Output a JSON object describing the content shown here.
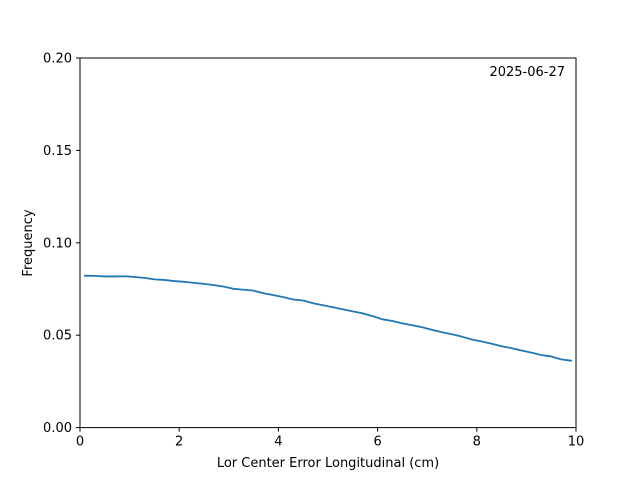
{
  "chart_data": {
    "type": "line",
    "title": "",
    "xlabel": "Lor Center Error Longitudinal (cm)",
    "ylabel": "Frequency",
    "annotation": "2025-06-27",
    "annotation_position": "top-right",
    "xlim": [
      0,
      10
    ],
    "ylim": [
      0,
      0.2
    ],
    "xticks": [
      0,
      2,
      4,
      6,
      8,
      10
    ],
    "xtick_labels": [
      "0",
      "2",
      "4",
      "6",
      "8",
      "10"
    ],
    "yticks": [
      0,
      0.05,
      0.1,
      0.15,
      0.2
    ],
    "ytick_labels": [
      "0.00",
      "0.05",
      "0.10",
      "0.15",
      "0.20"
    ],
    "grid": false,
    "series": [
      {
        "color": "#1f77b4",
        "x": [
          0.1,
          0.3,
          0.5,
          0.7,
          0.9,
          1.1,
          1.3,
          1.5,
          1.7,
          1.9,
          2.1,
          2.3,
          2.5,
          2.7,
          2.9,
          3.1,
          3.3,
          3.5,
          3.7,
          3.9,
          4.1,
          4.3,
          4.5,
          4.7,
          4.9,
          5.1,
          5.3,
          5.5,
          5.7,
          5.9,
          6.1,
          6.3,
          6.5,
          6.7,
          6.9,
          7.1,
          7.3,
          7.5,
          7.7,
          7.9,
          8.1,
          8.3,
          8.5,
          8.7,
          8.9,
          9.1,
          9.3,
          9.5,
          9.7,
          9.9
        ],
        "y": [
          0.0822,
          0.0821,
          0.0818,
          0.0818,
          0.0819,
          0.0815,
          0.081,
          0.0802,
          0.0799,
          0.0793,
          0.0789,
          0.0783,
          0.0778,
          0.0771,
          0.0763,
          0.0751,
          0.0746,
          0.0741,
          0.0727,
          0.0717,
          0.0706,
          0.0693,
          0.0688,
          0.0673,
          0.0662,
          0.0651,
          0.064,
          0.0629,
          0.0618,
          0.0603,
          0.0586,
          0.0577,
          0.0564,
          0.0554,
          0.0543,
          0.0529,
          0.0516,
          0.0505,
          0.0492,
          0.0477,
          0.0466,
          0.0454,
          0.044,
          0.043,
          0.0417,
          0.0406,
          0.0393,
          0.0385,
          0.0369,
          0.0362
        ]
      }
    ]
  }
}
